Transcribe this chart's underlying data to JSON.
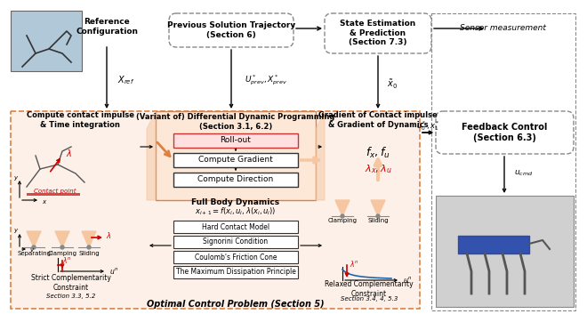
{
  "bg_color": "#ffffff",
  "light_orange": "#f5c6a0",
  "orange_fill": "#f0a070",
  "red_color": "#cc0000",
  "arrow_color": "#333333",
  "box_border": "#555555",
  "dashed_border": "#888888",
  "orange_border": "#e08040",
  "top_row": {
    "ref_config_label": "Reference\nConfiguration",
    "prev_sol_label": "Previous Solution Trajectory\n(Section 6)",
    "state_est_label": "State Estimation\n& Prediction\n(Section 7.3)",
    "sensor_label": "Sensor measurement",
    "xref_label": "X_ref",
    "uprev_label": "U*_prev, X*_prev",
    "x0_label": "x̃_0"
  },
  "middle_left_label": "Compute contact impulse\n& Time integration",
  "ddp_label": "(Variant of) Differential Dynamic Programming\n(Section 3.1, 6.2)",
  "ddp_boxes": [
    "Roll-out",
    "Compute Gradient",
    "Compute Direction"
  ],
  "gradient_label": "Gradient of Contact impulse\n& Gradient of Dynamics",
  "fx_fu_label": "f_x , f_u",
  "lx_lu_label": "λ_x , λ_u",
  "feedback_label": "Feedback Control\n(Section 6.3)",
  "u0_x1_label": "u*_0, x*_1",
  "ucmd_label": "u_cmd",
  "full_body_label": "Full Body Dynamics",
  "dynamics_eq": "x_{i+1} = f(x_i, u_i, λ(x_i, u_i))",
  "hard_contact_boxes": [
    "Hard Contact Model",
    "Signorini Condition",
    "Coulomb's Friction Cone",
    "The Maximum Dissipation Principle"
  ],
  "strict_label": "Strict Complementarity\nConstraint",
  "relaxed_label": "Relaxed Complementarity\nConstraint",
  "section_left": "Section 3.3, 5.2",
  "section_right": "Section 3.4, 4, 5.3",
  "ocp_label": "Optimal Control Problem (Section 5)",
  "contact_types": [
    "Separating",
    "Clamping",
    "Sliding"
  ],
  "contact_types_right": [
    "Clamping",
    "Sliding"
  ]
}
